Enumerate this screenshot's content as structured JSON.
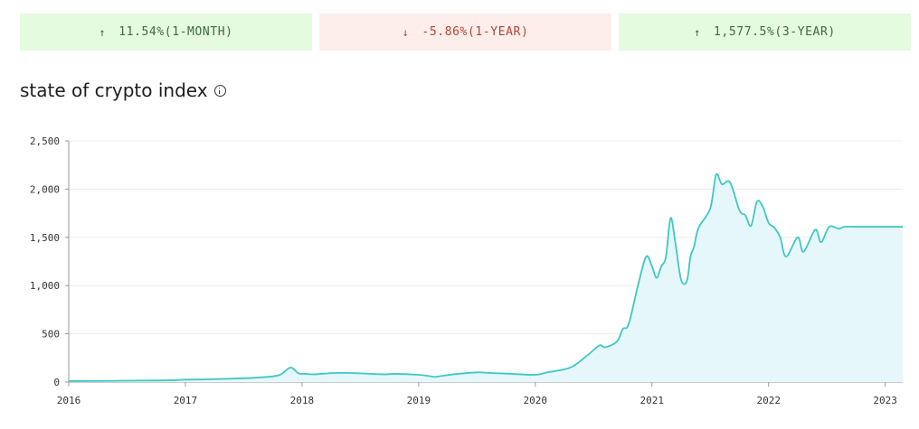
{
  "stats": [
    {
      "direction": "up",
      "arrow": "↑",
      "value": "11.54%(1-MONTH)"
    },
    {
      "direction": "down",
      "arrow": "↓",
      "value": "-5.86%(1-YEAR)"
    },
    {
      "direction": "up",
      "arrow": "↑",
      "value": "1,577.5%(3-YEAR)"
    }
  ],
  "title": "state of crypto index",
  "info_icon": "info-icon",
  "colors": {
    "line": "#3ec8c4",
    "area": "#e6f7fb",
    "up_bg": "#e4fbe0",
    "down_bg": "#fdeeec"
  },
  "chart_data": {
    "type": "area",
    "title": "state of crypto index",
    "xlabel": "",
    "ylabel": "",
    "ylim": [
      0,
      2500
    ],
    "xlim": [
      2016.0,
      2023.15
    ],
    "y_ticks": [
      0,
      500,
      1000,
      1500,
      2000,
      2500
    ],
    "y_tick_labels": [
      "0",
      "500",
      "1,000",
      "1,500",
      "2,000",
      "2,500"
    ],
    "x_ticks": [
      2016,
      2017,
      2018,
      2019,
      2020,
      2021,
      2022,
      2023
    ],
    "x_tick_labels": [
      "2016",
      "2017",
      "2018",
      "2019",
      "2020",
      "2021",
      "2022",
      "2023"
    ],
    "grid": true,
    "series": [
      {
        "x": [
          2016.0,
          2016.3,
          2016.6,
          2016.9,
          2017.0,
          2017.2,
          2017.4,
          2017.6,
          2017.8,
          2017.9,
          2017.97,
          2018.03,
          2018.1,
          2018.3,
          2018.5,
          2018.7,
          2018.8,
          2019.0,
          2019.1,
          2019.15,
          2019.3,
          2019.5,
          2019.6,
          2019.8,
          2020.0,
          2020.1,
          2020.3,
          2020.45,
          2020.55,
          2020.6,
          2020.7,
          2020.75,
          2020.8,
          2020.88,
          2020.95,
          2021.0,
          2021.04,
          2021.08,
          2021.12,
          2021.16,
          2021.2,
          2021.25,
          2021.3,
          2021.33,
          2021.36,
          2021.4,
          2021.5,
          2021.55,
          2021.6,
          2021.67,
          2021.75,
          2021.8,
          2021.85,
          2021.9,
          2021.95,
          2022.0,
          2022.05,
          2022.1,
          2022.15,
          2022.25,
          2022.3,
          2022.4,
          2022.45,
          2022.52,
          2022.6,
          2022.65,
          2022.72,
          2022.78,
          2022.85,
          2022.92,
          2022.98,
          2023.05,
          2023.1,
          2023.15
        ],
        "y": [
          10,
          12,
          15,
          18,
          25,
          28,
          35,
          45,
          70,
          150,
          90,
          85,
          80,
          95,
          90,
          80,
          85,
          75,
          60,
          55,
          80,
          100,
          95,
          85,
          75,
          100,
          150,
          280,
          380,
          360,
          420,
          550,
          600,
          1000,
          1300,
          1200,
          1080,
          1200,
          1300,
          1700,
          1450,
          1060,
          1050,
          1300,
          1400,
          1600,
          1800,
          2150,
          2050,
          2070,
          1780,
          1730,
          1620,
          1870,
          1820,
          1650,
          1600,
          1500,
          1300,
          1500,
          1350,
          1580,
          1450,
          1610,
          1590,
          1610,
          1610,
          1610,
          1610,
          1610,
          1610,
          1610,
          1610,
          1610
        ]
      }
    ]
  }
}
